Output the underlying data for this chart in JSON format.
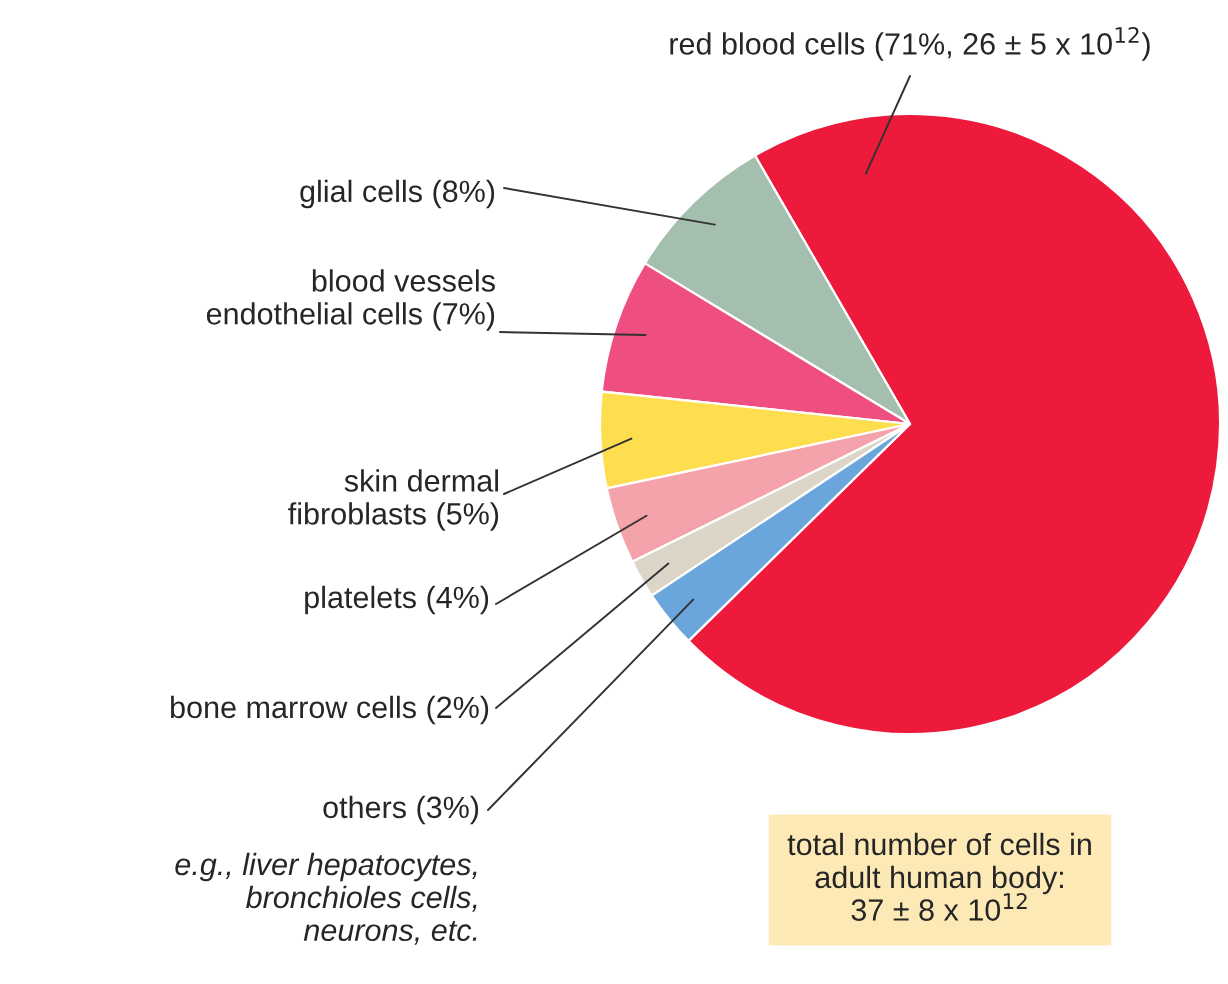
{
  "chart_data": {
    "type": "pie",
    "categories": [
      "red blood cells (71%, 26 ± 5 x 10$^{12}$)",
      "glial cells (8%)",
      "blood vessels\nendothelial cells (7%)",
      "skin dermal\nfibroblasts (5%)",
      "platelets (4%)",
      "bone marrow cells (2%)",
      "others (3%)"
    ],
    "values": [
      71,
      8,
      7,
      5,
      4,
      2,
      3
    ],
    "colors": [
      "#ed1a3b",
      "#a5bfae",
      "#ee4f80",
      "#fede4f",
      "#f5a3aa",
      "#dcd6c9",
      "#6aa6dc"
    ],
    "annotations": [
      "e.g., liver hepatocytes,\nbronchioles cells,\nneurons, etc.",
      "total number of cells in\nadult human body:\n37 ± 8 x 10$^{12}$"
    ]
  }
}
